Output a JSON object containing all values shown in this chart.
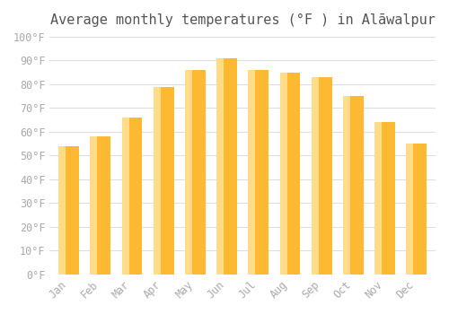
{
  "title": "Average monthly temperatures (°F ) in Alāwalpur",
  "months": [
    "Jan",
    "Feb",
    "Mar",
    "Apr",
    "May",
    "Jun",
    "Jul",
    "Aug",
    "Sep",
    "Oct",
    "Nov",
    "Dec"
  ],
  "values": [
    54,
    58,
    66,
    79,
    86,
    91,
    86,
    85,
    83,
    75,
    64,
    55
  ],
  "bar_color_main": "#FDB931",
  "bar_color_light": "#FFDD88",
  "background_color": "#FFFFFF",
  "grid_color": "#DDDDDD",
  "text_color": "#AAAAAA",
  "title_color": "#555555",
  "ylim": [
    0,
    100
  ],
  "yticks": [
    0,
    10,
    20,
    30,
    40,
    50,
    60,
    70,
    80,
    90,
    100
  ],
  "ytick_labels": [
    "0°F",
    "10°F",
    "20°F",
    "30°F",
    "40°F",
    "50°F",
    "60°F",
    "70°F",
    "80°F",
    "90°F",
    "100°F"
  ],
  "title_fontsize": 11,
  "tick_fontsize": 8.5,
  "figsize": [
    5.0,
    3.5
  ],
  "dpi": 100
}
